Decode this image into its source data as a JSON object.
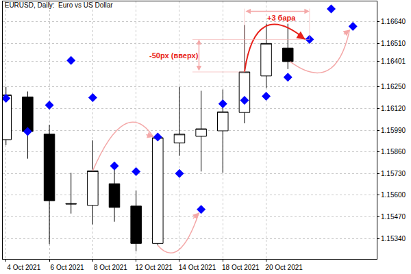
{
  "chart_data": {
    "type": "candlestick",
    "title": "EURUSD, Daily:  Euro vs US Dollar",
    "categories": [
      "4 Oct 2021",
      null,
      "6 Oct 2021",
      null,
      "8 Oct 2021",
      null,
      "12 Oct 2021",
      null,
      "14 Oct 2021",
      null,
      "18 Oct 2021",
      null,
      "20 Oct 2021",
      null,
      null,
      null,
      null
    ],
    "series": [
      {
        "type": "candlestick",
        "color": "#000000",
        "open": [
          1.15933,
          1.16189,
          1.15966,
          1.1555,
          1.15539,
          1.15669,
          1.15535,
          1.15311,
          1.15913,
          1.15953,
          1.15986,
          1.16096,
          1.16315,
          1.16482,
          null,
          null,
          null
        ],
        "high": [
          1.1625,
          1.16222,
          1.16022,
          1.15734,
          1.15929,
          1.15783,
          1.15628,
          1.15961,
          1.1625,
          1.16226,
          1.16234,
          1.1662,
          1.16628,
          1.16628,
          null,
          null,
          null
        ],
        "low": [
          1.159,
          1.15819,
          1.15307,
          1.1549,
          1.15425,
          1.15441,
          1.15263,
          1.15299,
          1.15836,
          1.15742,
          1.15734,
          1.16031,
          1.16242,
          1.16356,
          null,
          null,
          null
        ],
        "close": [
          1.16201,
          1.15982,
          1.15567,
          1.15547,
          1.15746,
          1.15527,
          1.15311,
          1.15945,
          1.15966,
          1.15998,
          1.161,
          1.16339,
          1.1651,
          1.16401,
          null,
          null,
          null
        ]
      },
      {
        "type": "scatter",
        "marker": "diamond",
        "color": "#0000ff",
        "values": [
          1.16181,
          1.15982,
          1.1614,
          1.16408,
          1.16185,
          1.15775,
          1.15742,
          1.15949,
          1.1573,
          1.15515,
          1.16148,
          1.16169,
          1.16193,
          1.16307,
          1.16534,
          1.16717,
          1.16612
        ]
      }
    ],
    "ylim": [
      1.15218,
      1.16762
    ],
    "yticks": [
      {
        "value": 1.1534,
        "label": "1.15340"
      },
      {
        "value": 1.1547,
        "label": "1.15470"
      },
      {
        "value": 1.156,
        "label": "1.15600"
      },
      {
        "value": 1.1573,
        "label": "1.15730"
      },
      {
        "value": 1.1586,
        "label": "1.15860"
      },
      {
        "value": 1.1599,
        "label": "1.15990"
      },
      {
        "value": 1.1612,
        "label": "1.16120"
      },
      {
        "value": 1.1625,
        "label": "1.16250"
      },
      {
        "value": 1.16401,
        "label": "1.16401"
      },
      {
        "value": 1.1651,
        "label": "1.16510"
      },
      {
        "value": 1.1664,
        "label": "1.16640"
      }
    ],
    "grid": true,
    "annotations": [
      {
        "text": "+3 бара",
        "x": 12.7,
        "y": 1.16665
      },
      {
        "text": "-50px (вверх)",
        "x": 7.75,
        "y": 1.16437
      }
    ]
  }
}
